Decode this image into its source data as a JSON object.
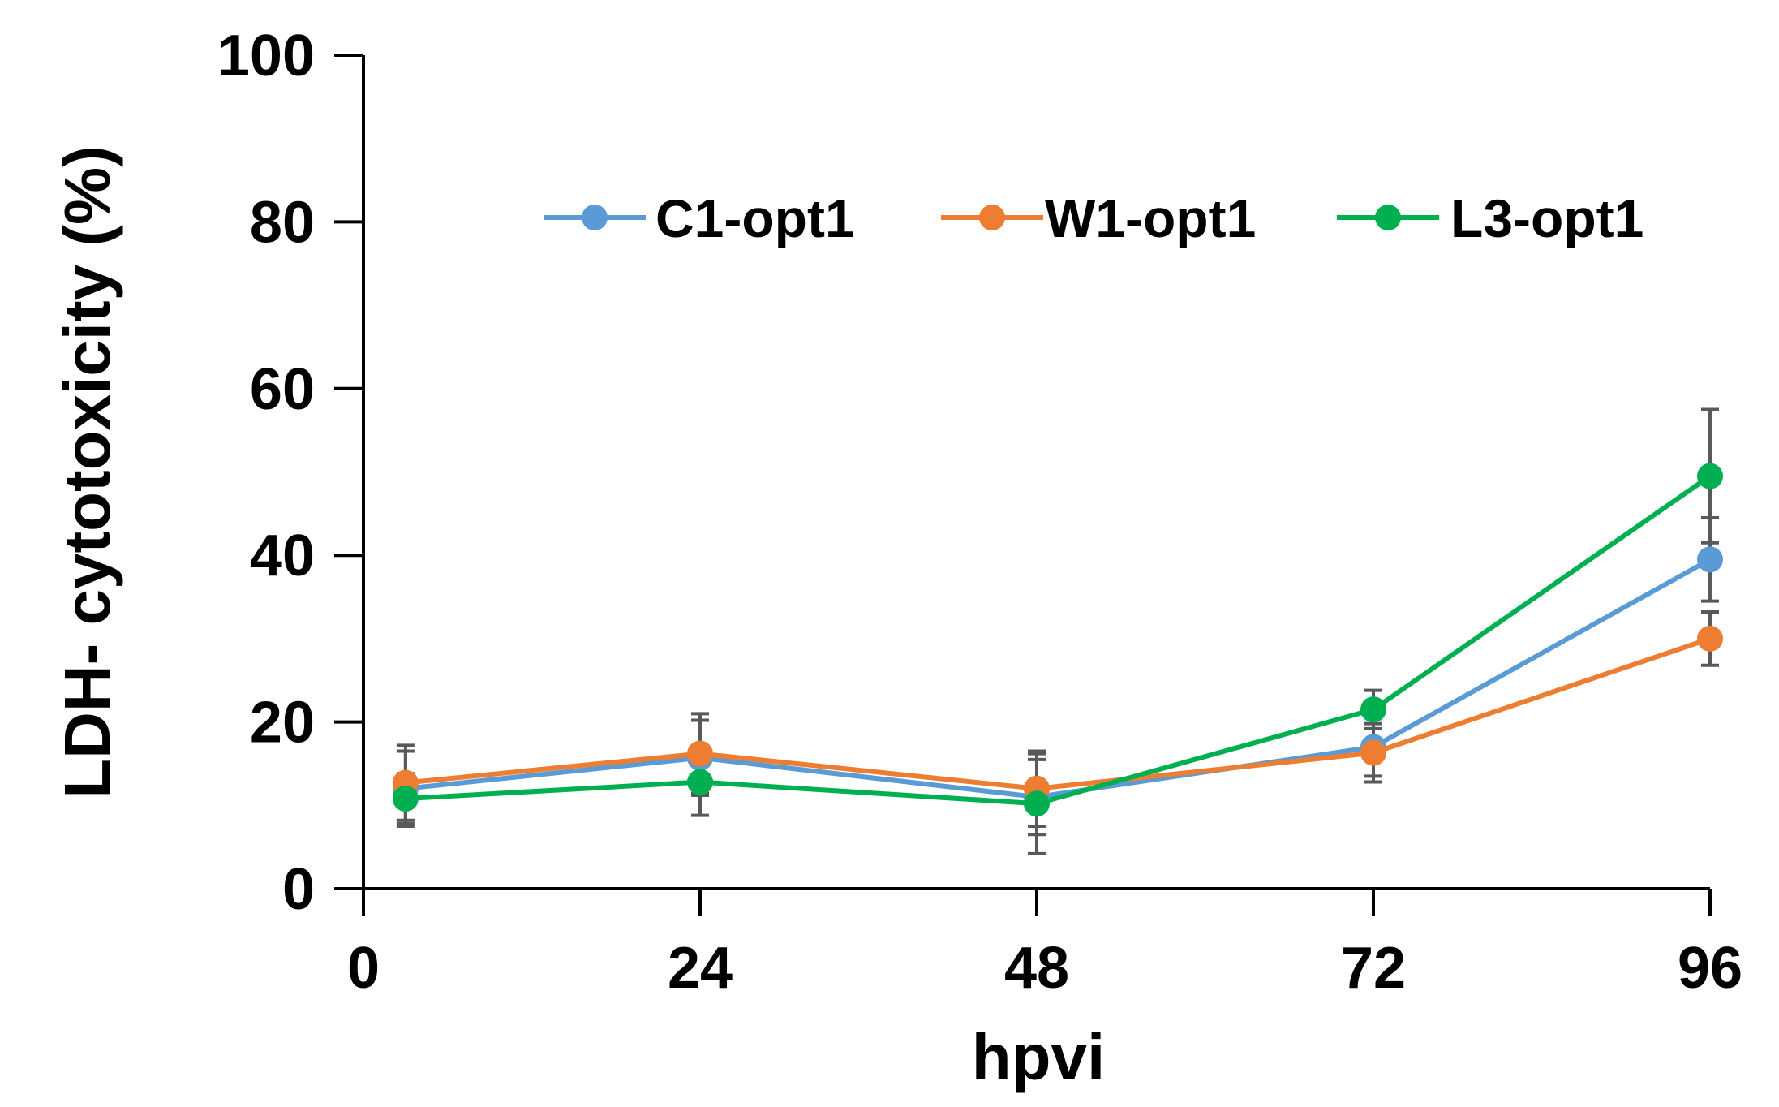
{
  "chart_data": {
    "type": "line",
    "title": "",
    "xlabel": "hpvi",
    "ylabel": "LDH- cytotoxicity (%)",
    "x_ticks": [
      0,
      24,
      48,
      72,
      96
    ],
    "x_tick_labels": [
      "0",
      "24",
      "48",
      "72",
      "96"
    ],
    "y_ticks": [
      0,
      20,
      40,
      60,
      80,
      100
    ],
    "y_tick_labels": [
      "0",
      "20",
      "40",
      "60",
      "80",
      "100"
    ],
    "xlim": [
      0,
      96
    ],
    "ylim": [
      0,
      100
    ],
    "grid": false,
    "legend_position": "top",
    "series": [
      {
        "name": "C1-opt1",
        "color": "#5B9BD5",
        "x": [
          3,
          24,
          48,
          72,
          96
        ],
        "values": [
          12.0,
          15.7,
          11.0,
          17.0,
          39.5
        ],
        "errors": [
          4.5,
          4.5,
          4.5,
          3.5,
          5.0
        ]
      },
      {
        "name": "W1-opt1",
        "color": "#ED7D31",
        "x": [
          3,
          24,
          48,
          72,
          96
        ],
        "values": [
          12.7,
          16.2,
          12.0,
          16.3,
          30.0
        ],
        "errors": [
          4.5,
          4.8,
          4.5,
          3.5,
          3.2
        ]
      },
      {
        "name": "L3-opt1",
        "color": "#00B050",
        "x": [
          3,
          24,
          48,
          72,
          96
        ],
        "values": [
          10.8,
          12.8,
          10.2,
          21.5,
          49.5
        ],
        "errors": [
          3.0,
          4.0,
          6.0,
          2.3,
          8.0
        ]
      }
    ]
  }
}
